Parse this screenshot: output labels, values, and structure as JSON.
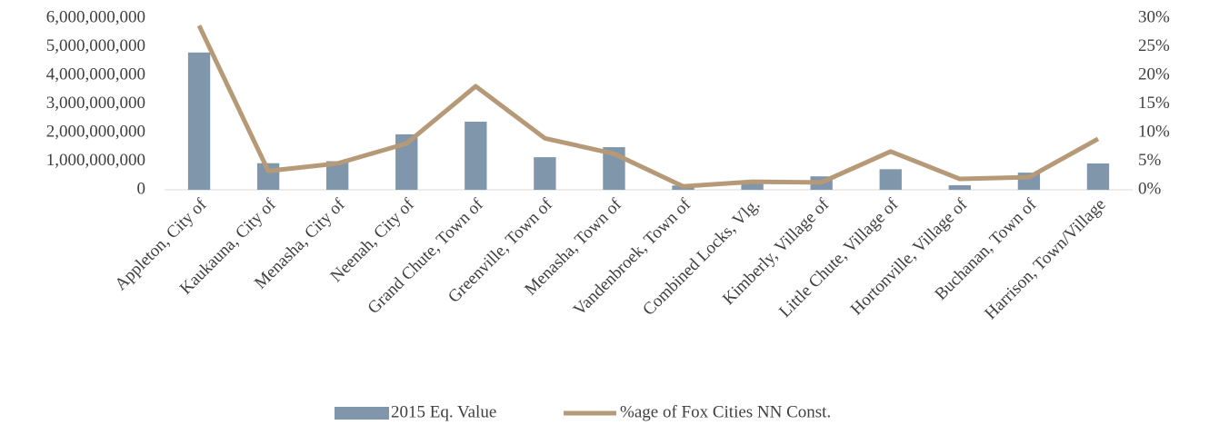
{
  "chart_data": {
    "type": "bar_line",
    "categories": [
      "Appleton, City of",
      "Kaukauna, City of",
      "Menasha, City of",
      "Neenah, City of",
      "Grand Chute, Town of",
      "Greenville, Town of",
      "Menasha, Town of",
      "Vandenbroek, Town of",
      "Combined Locks, Vlg.",
      "Kimberly, Village of",
      "Little Chute, Village of",
      "Hortonville, Village of",
      "Buchanan, Town of",
      "Harrison, Town/Village"
    ],
    "series": [
      {
        "name": "2015 Eq. Value",
        "type": "bar",
        "color": "#7f96ab",
        "axis": "y",
        "values": [
          4800000000,
          930000000,
          1000000000,
          1940000000,
          2380000000,
          1140000000,
          1490000000,
          150000000,
          300000000,
          470000000,
          720000000,
          160000000,
          600000000,
          920000000
        ]
      },
      {
        "name": "%age of Fox Cities NN Const.",
        "type": "line",
        "color": "#b69a78",
        "axis": "y2",
        "values": [
          28.7,
          3.3,
          4.6,
          8.1,
          18.1,
          9.0,
          6.3,
          0.6,
          1.4,
          1.3,
          6.7,
          1.9,
          2.2,
          8.9
        ]
      }
    ],
    "ylim": [
      0,
      6000000000
    ],
    "yticks": [
      0,
      {
        "value": 1000000000,
        "label": "1,000,000,000"
      },
      {
        "value": 2000000000,
        "label": "2,000,000,000"
      },
      {
        "value": 3000000000,
        "label": "3,000,000,000"
      },
      {
        "value": 4000000000,
        "label": "4,000,000,000"
      },
      {
        "value": 5000000000,
        "label": "5,000,000,000"
      },
      {
        "value": 6000000000,
        "label": "6,000,000,000"
      }
    ],
    "y2lim": [
      0,
      30
    ],
    "y2ticks": [
      {
        "value": 0,
        "label": "0%"
      },
      {
        "value": 5,
        "label": "5%"
      },
      {
        "value": 10,
        "label": "10%"
      },
      {
        "value": 15,
        "label": "15%"
      },
      {
        "value": 20,
        "label": "20%"
      },
      {
        "value": 25,
        "label": "25%"
      },
      {
        "value": 30,
        "label": "30%"
      }
    ],
    "legend": "bottom",
    "grid": false
  }
}
